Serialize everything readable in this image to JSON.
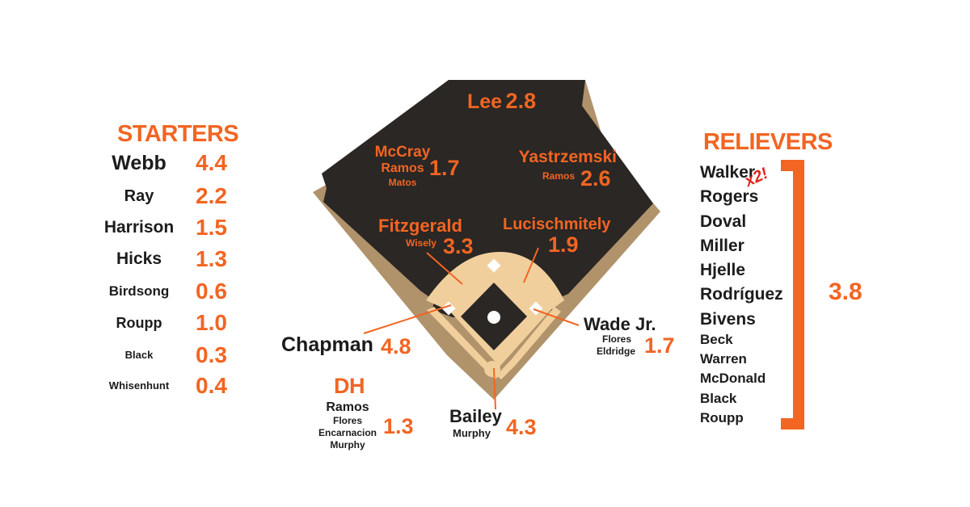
{
  "colors": {
    "accent": "#f26522",
    "outfield": "#2a2724",
    "dirt": "#b0926b",
    "infield": "#f1cf9d",
    "text": "#1c1c1c"
  },
  "starters": {
    "title": "STARTERS",
    "items": [
      {
        "name": "Webb",
        "value": "4.4"
      },
      {
        "name": "Ray",
        "value": "2.2"
      },
      {
        "name": "Harrison",
        "value": "1.5"
      },
      {
        "name": "Hicks",
        "value": "1.3"
      },
      {
        "name": "Birdsong",
        "value": "0.6"
      },
      {
        "name": "Roupp",
        "value": "1.0"
      },
      {
        "name": "Black",
        "value": "0.3"
      },
      {
        "name": "Whisenhunt",
        "value": "0.4"
      }
    ]
  },
  "relievers": {
    "title": "RELIEVERS",
    "items": [
      "Walker",
      "Rogers",
      "Doval",
      "Miller",
      "Hjelle",
      "Rodríguez",
      "Bivens",
      "Beck",
      "Warren",
      "McDonald",
      "Black",
      "Roupp"
    ],
    "note": "x2!",
    "total": "3.8"
  },
  "field": {
    "cf": {
      "name": "Lee",
      "value": "2.8"
    },
    "lf": {
      "names": [
        "McCray",
        "Ramos",
        "Matos"
      ],
      "value": "1.7"
    },
    "rf": {
      "names": [
        "Yastrzemski",
        "Ramos"
      ],
      "value": "2.6"
    },
    "ss": {
      "names": [
        "Fitzgerald",
        "Wisely"
      ],
      "value": "3.3"
    },
    "second": {
      "name": "Lucischmitely",
      "value": "1.9"
    },
    "third": {
      "name": "Chapman",
      "value": "4.8"
    },
    "first": {
      "names": [
        "Wade Jr.",
        "Flores",
        "Eldridge"
      ],
      "value": "1.7"
    },
    "catcher": {
      "names": [
        "Bailey",
        "Murphy"
      ],
      "value": "4.3"
    }
  },
  "dh": {
    "title": "DH",
    "names": [
      "Ramos",
      "Flores",
      "Encarnacion",
      "Murphy"
    ],
    "value": "1.3"
  }
}
